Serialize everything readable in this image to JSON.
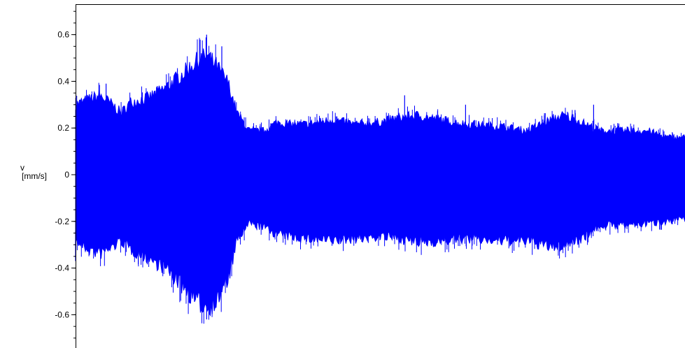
{
  "chart_data": {
    "type": "area",
    "title": "",
    "xlabel": "",
    "ylabel": "v",
    "ylabel_unit": "[mm/s]",
    "ylim": [
      -0.7,
      0.72
    ],
    "y_ticks": [
      {
        "value": 0.6,
        "label": "0.6"
      },
      {
        "value": 0.4,
        "label": "0.4"
      },
      {
        "value": 0.2,
        "label": "0.2"
      },
      {
        "value": 0.0,
        "label": "0"
      },
      {
        "value": -0.2,
        "label": "-0.2"
      },
      {
        "value": -0.4,
        "label": "-0.4"
      },
      {
        "value": -0.6,
        "label": "-0.6"
      }
    ],
    "y_minor_step": 0.05,
    "x_ticks": [],
    "grid": false,
    "legend": "none",
    "series_color": "#0000FF",
    "x": [
      0.0,
      0.02,
      0.04,
      0.06,
      0.075,
      0.09,
      0.12,
      0.15,
      0.18,
      0.2,
      0.215,
      0.23,
      0.25,
      0.265,
      0.285,
      0.31,
      0.33,
      0.35,
      0.38,
      0.42,
      0.46,
      0.5,
      0.53,
      0.56,
      0.6,
      0.64,
      0.7,
      0.74,
      0.78,
      0.8,
      0.83,
      0.86,
      0.9,
      0.94,
      0.97,
      1.0
    ],
    "envelope_upper": [
      0.32,
      0.34,
      0.36,
      0.32,
      0.28,
      0.33,
      0.35,
      0.4,
      0.47,
      0.52,
      0.54,
      0.5,
      0.42,
      0.28,
      0.2,
      0.2,
      0.24,
      0.23,
      0.23,
      0.25,
      0.23,
      0.24,
      0.26,
      0.27,
      0.25,
      0.23,
      0.22,
      0.2,
      0.25,
      0.27,
      0.24,
      0.2,
      0.2,
      0.2,
      0.17,
      0.17
    ],
    "envelope_lower": [
      -0.3,
      -0.34,
      -0.36,
      -0.33,
      -0.3,
      -0.34,
      -0.38,
      -0.43,
      -0.52,
      -0.58,
      -0.6,
      -0.58,
      -0.48,
      -0.3,
      -0.22,
      -0.24,
      -0.27,
      -0.28,
      -0.29,
      -0.3,
      -0.29,
      -0.28,
      -0.29,
      -0.31,
      -0.3,
      -0.29,
      -0.3,
      -0.3,
      -0.33,
      -0.32,
      -0.29,
      -0.23,
      -0.23,
      -0.22,
      -0.21,
      -0.2
    ],
    "spikes": [
      {
        "x": 0.215,
        "y": 0.6
      },
      {
        "x": 0.24,
        "y": 0.55
      },
      {
        "x": 0.215,
        "y": -0.62
      },
      {
        "x": 0.54,
        "y": 0.34
      },
      {
        "x": 0.64,
        "y": 0.3
      },
      {
        "x": 0.85,
        "y": 0.3
      },
      {
        "x": 0.05,
        "y": 0.39
      },
      {
        "x": 0.0,
        "y": -0.37
      },
      {
        "x": 0.07,
        "y": -0.25
      }
    ]
  }
}
